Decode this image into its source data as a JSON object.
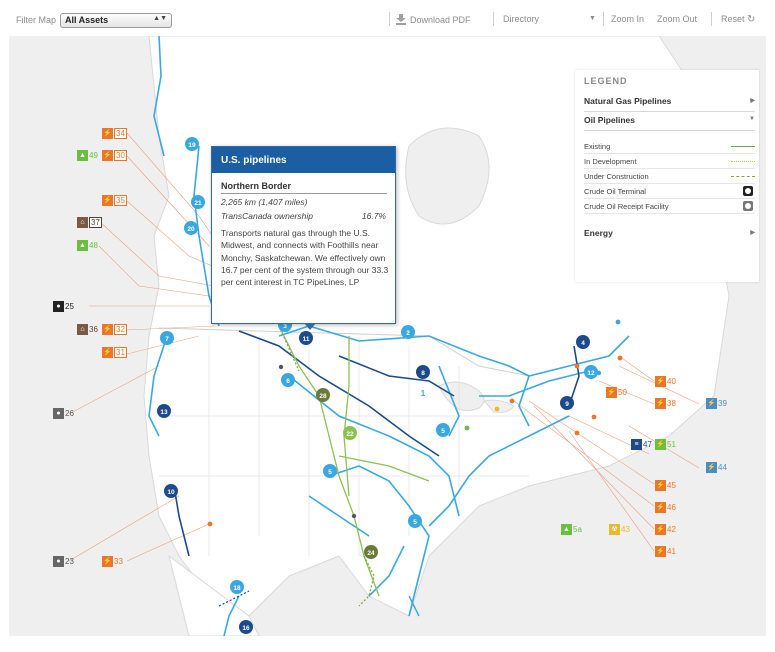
{
  "toolbar": {
    "filter_label": "Filter Map",
    "filter_value": "All Assets",
    "download_pdf": "Download PDF",
    "directory": "Directory",
    "zoom_in": "Zoom In",
    "zoom_out": "Zoom Out",
    "reset": "Reset"
  },
  "legend": {
    "title": "LEGEND",
    "sections": {
      "natural_gas": "Natural Gas Pipelines",
      "oil": "Oil Pipelines",
      "energy": "Energy"
    },
    "items": [
      "Existing",
      "In Development",
      "Under Construction",
      "Crude Oil Terminal",
      "Crude Oil Receipt Facility"
    ],
    "colors": {
      "existing": "#6aa84f",
      "in_development": "#b8c94a",
      "under_construction": "#8aa04a",
      "terminal": "#222222",
      "receipt": "#777777"
    }
  },
  "popup": {
    "title": "U.S. pipelines",
    "name": "Northern Border",
    "distance": "2,265 km (1,407 miles)",
    "ownership_label": "TransCanada ownership",
    "ownership_pct": "16.7%",
    "description": "Transports natural gas through the U.S. Midwest, and connects with Foothills near Monchy, Saskatchewan. We effectively own 16.7 per cent of the system through our 33.3 per cent interest in TC PipeLines, LP"
  },
  "markers": {
    "light_blue": [
      "19",
      "21",
      "20",
      "3",
      "2",
      "7",
      "6",
      "5",
      "5",
      "5",
      "12",
      "1",
      "18"
    ],
    "navy": [
      "11",
      "4",
      "8",
      "13",
      "9",
      "10",
      "16"
    ],
    "olive": [
      "28",
      "22",
      "24"
    ]
  },
  "side_labels": {
    "left": [
      "34",
      "49",
      "30",
      "35",
      "37",
      "48",
      "25",
      "36",
      "32",
      "31",
      "26",
      "23",
      "33"
    ],
    "right": [
      "40",
      "50",
      "38",
      "39",
      "47",
      "51",
      "44",
      "45",
      "46",
      "5a",
      "43",
      "42",
      "41"
    ]
  },
  "colors": {
    "map_bg": "#efefef",
    "land": "#ffffff",
    "pipeline_light": "#3aa8e0",
    "pipeline_dark": "#1c4a8a",
    "oil_green": "#8cc152",
    "power_orange": "#e8772b",
    "popup_header": "#1c5ea3"
  }
}
